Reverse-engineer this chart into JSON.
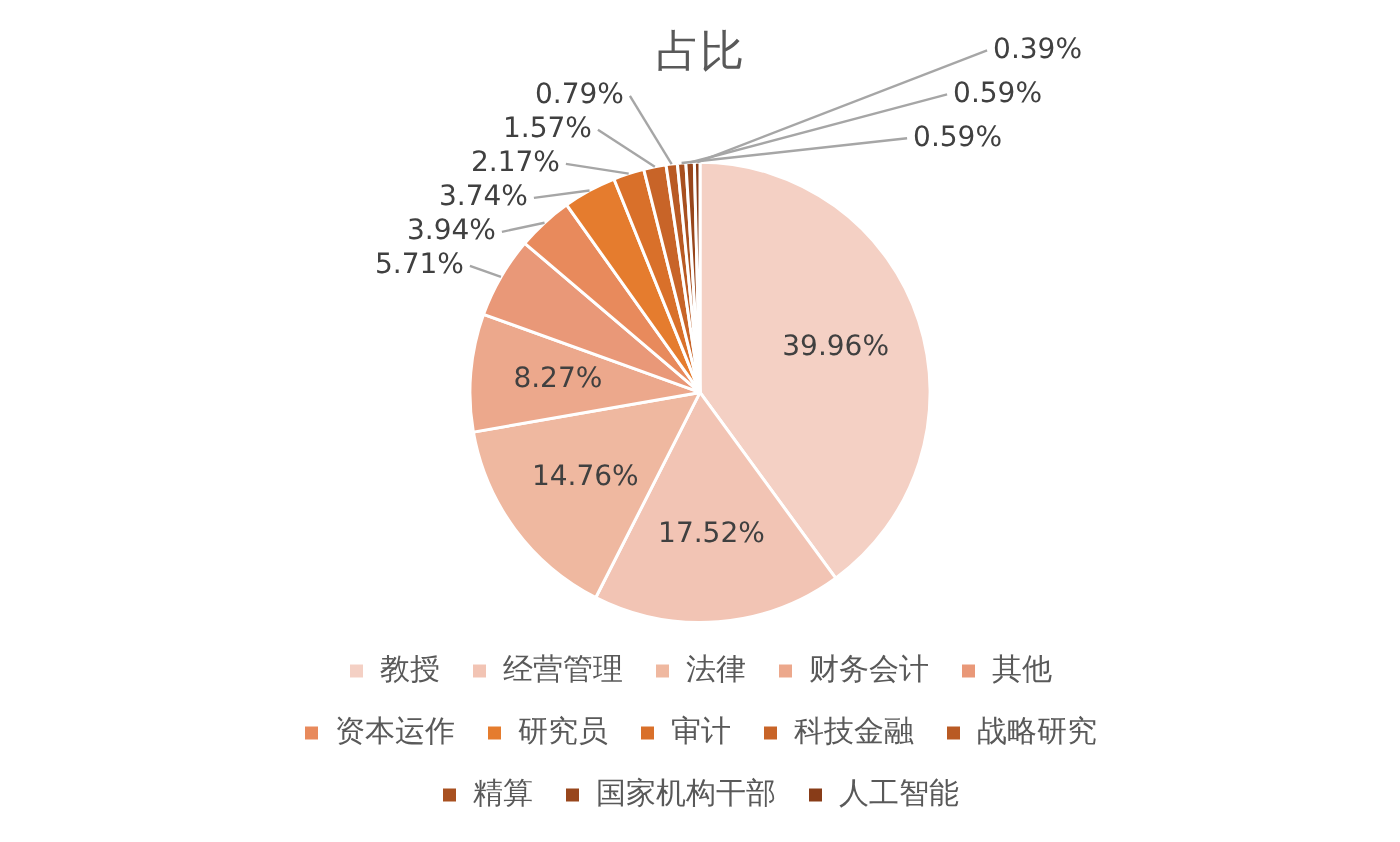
{
  "chart_data": {
    "type": "pie",
    "title": "占比",
    "categories": [
      "教授",
      "经营管理",
      "法律",
      "财务会计",
      "其他",
      "资本运作",
      "研究员",
      "审计",
      "科技金融",
      "战略研究",
      "精算",
      "国家机构干部",
      "人工智能"
    ],
    "values": [
      39.96,
      17.52,
      14.76,
      8.27,
      5.71,
      3.94,
      3.74,
      2.17,
      1.57,
      0.79,
      0.59,
      0.59,
      0.39
    ],
    "colors": [
      "#f4d0c4",
      "#f2c4b4",
      "#efb8a0",
      "#eca88c",
      "#e99878",
      "#e88a5c",
      "#e57c2e",
      "#d9702a",
      "#c86428",
      "#b95a24",
      "#a85020",
      "#98461c",
      "#883c18"
    ],
    "value_labels": [
      "39.96%",
      "17.52%",
      "14.76%",
      "8.27%",
      "5.71%",
      "3.94%",
      "3.74%",
      "2.17%",
      "1.57%",
      "0.79%",
      "0.59%",
      "0.59%",
      "0.39%"
    ],
    "legend": "bottom"
  }
}
